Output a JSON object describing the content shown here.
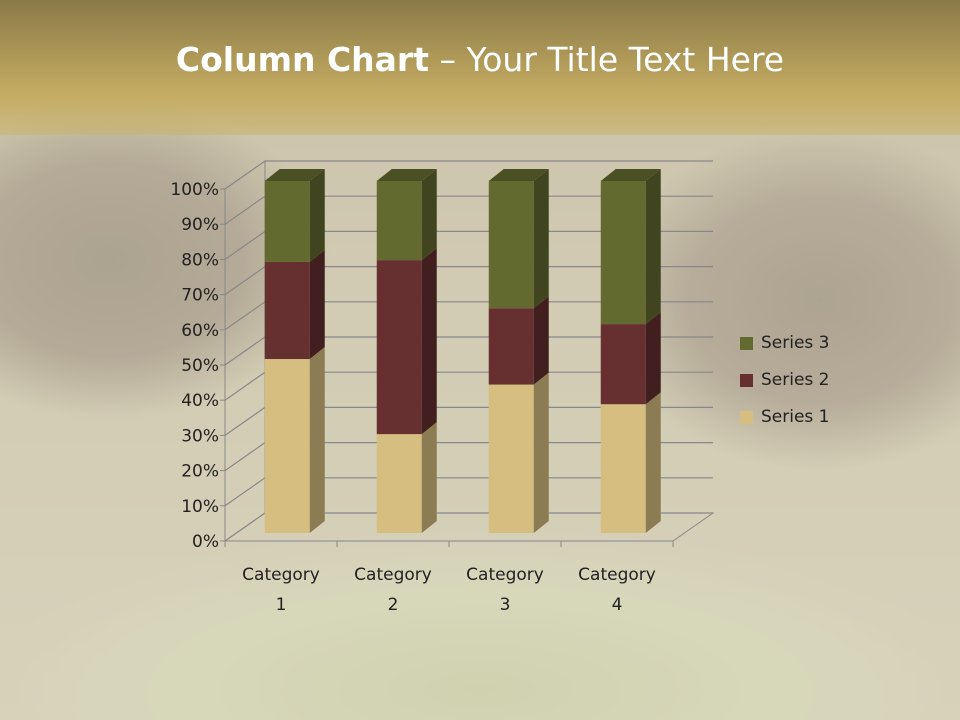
{
  "title": {
    "bold": "Column Chart",
    "rest": " – Your Title Text Here"
  },
  "chart_data": {
    "type": "bar",
    "stacking": "percent",
    "three_d": true,
    "categories": [
      "Category 1",
      "Category 2",
      "Category 3",
      "Category 4"
    ],
    "series": [
      {
        "name": "Series 1",
        "values": [
          4.3,
          2.5,
          3.5,
          4.5
        ],
        "color": "#D6BE80"
      },
      {
        "name": "Series 2",
        "values": [
          2.4,
          4.4,
          1.8,
          2.8
        ],
        "color": "#662F30"
      },
      {
        "name": "Series 3",
        "values": [
          2,
          2,
          3,
          5
        ],
        "color": "#636A30"
      }
    ],
    "ylim": [
      0,
      100
    ],
    "yticks": [
      "0%",
      "10%",
      "20%",
      "30%",
      "40%",
      "50%",
      "60%",
      "70%",
      "80%",
      "90%",
      "100%"
    ],
    "grid": true,
    "legend": "right"
  }
}
